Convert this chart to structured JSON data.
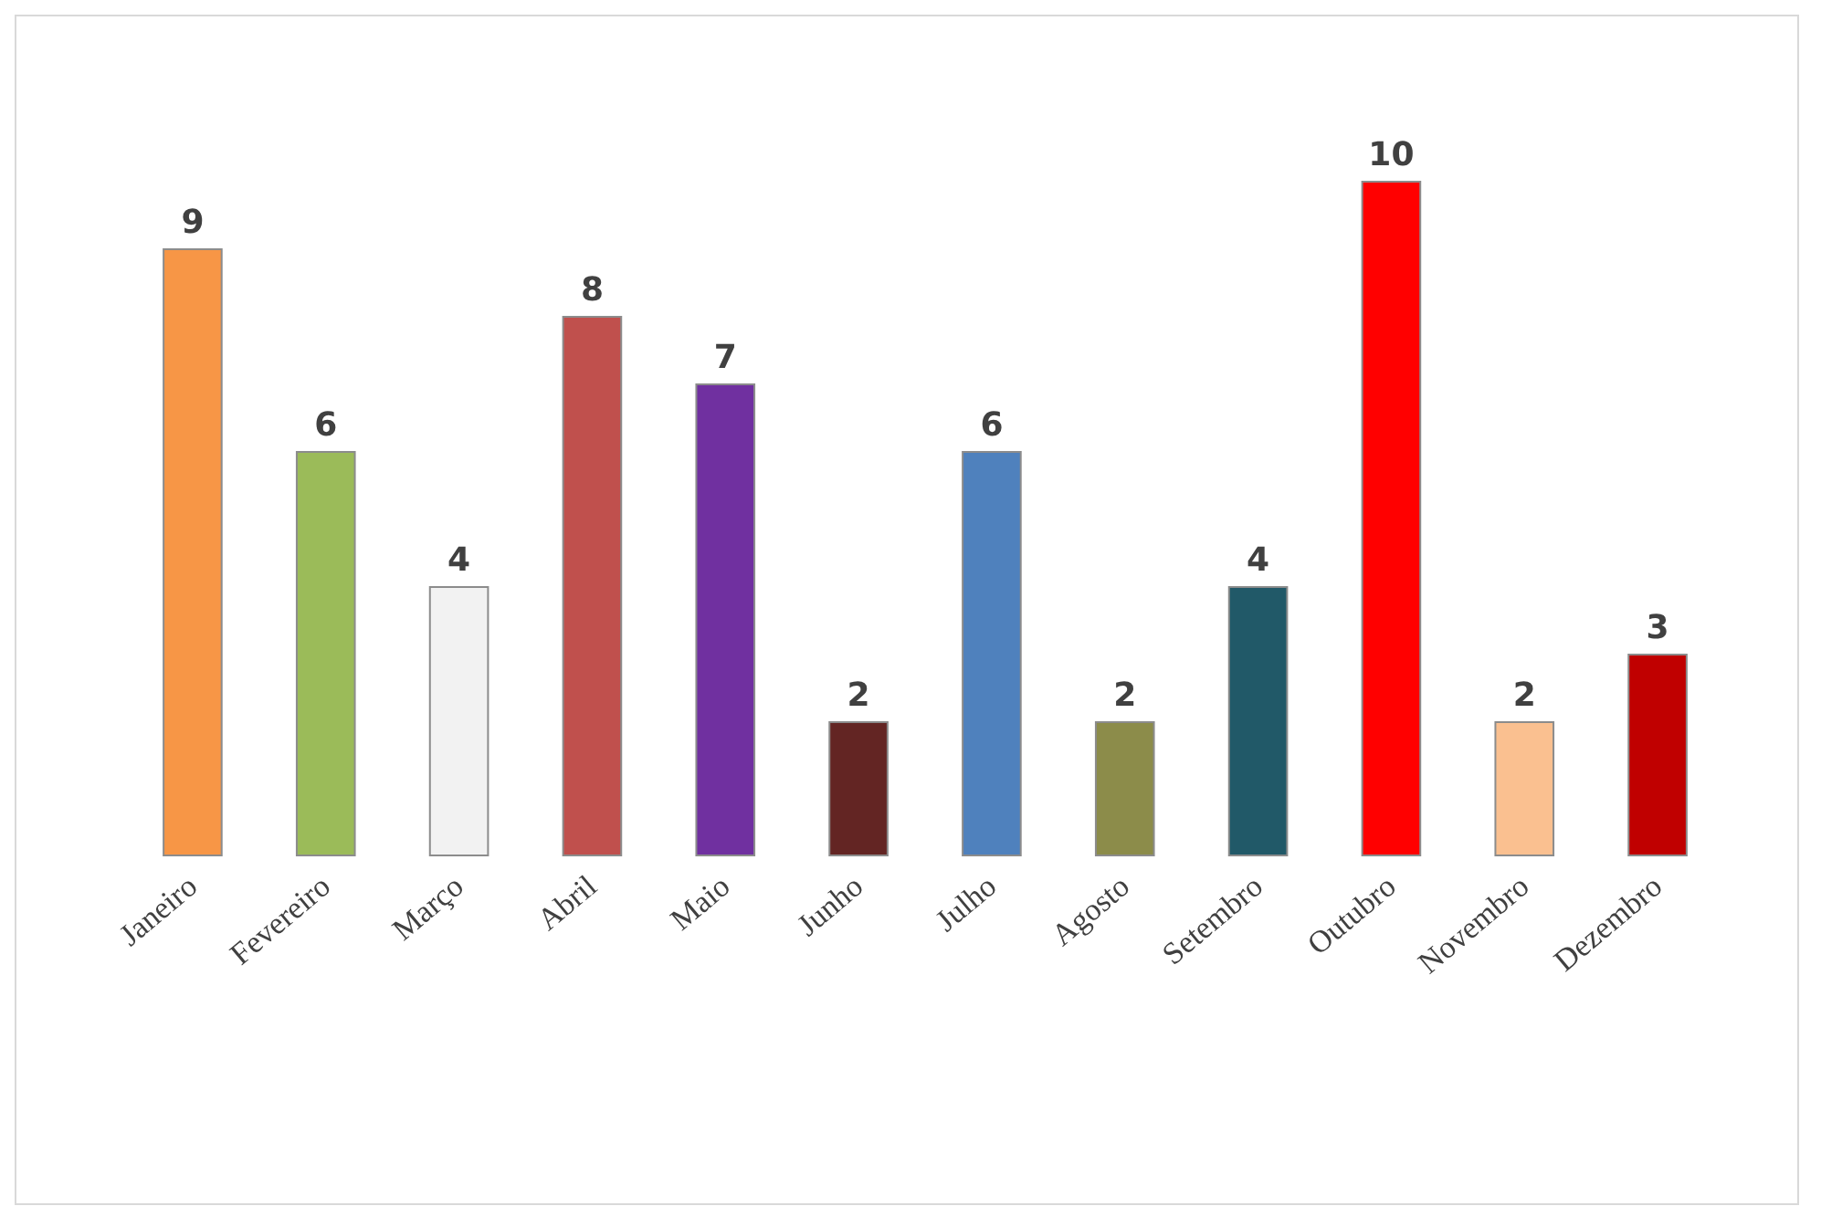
{
  "chart_data": {
    "type": "bar",
    "categories": [
      "Janeiro",
      "Fevereiro",
      "Março",
      "Abril",
      "Maio",
      "Junho",
      "Julho",
      "Agosto",
      "Setembro",
      "Outubro",
      "Novembro",
      "Dezembro"
    ],
    "values": [
      9,
      6,
      4,
      8,
      7,
      2,
      6,
      2,
      4,
      10,
      2,
      3
    ],
    "colors": [
      "#f79646",
      "#9bbb59",
      "#f2f2f2",
      "#c0504d",
      "#7030a0",
      "#632523",
      "#4f81bd",
      "#8c8c4a",
      "#215968",
      "#ff0000",
      "#fac090",
      "#c00000"
    ],
    "data_labels": true,
    "grid": false
  }
}
